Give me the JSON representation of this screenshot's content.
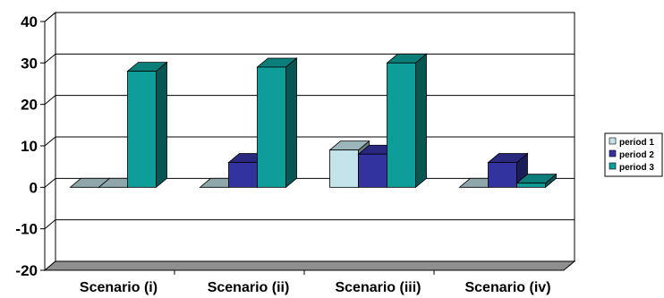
{
  "chart_data": {
    "type": "bar",
    "style": "3d-clustered-column",
    "categories": [
      "Scenario (i)",
      "Scenario (ii)",
      "Scenario (iii)",
      "Scenario (iv)"
    ],
    "series": [
      {
        "name": "period 1",
        "values": [
          0,
          0,
          9,
          0
        ],
        "color": "#c2e4ea"
      },
      {
        "name": "period 2",
        "values": [
          0,
          6,
          8,
          6
        ],
        "color": "#3333a0"
      },
      {
        "name": "period 3",
        "values": [
          28,
          29,
          30,
          1
        ],
        "color": "#0f9d99"
      }
    ],
    "yticks": [
      40,
      30,
      20,
      10,
      0,
      -10,
      -20
    ],
    "ylim": [
      -20,
      40
    ],
    "grid": true,
    "legend": "right",
    "title": "",
    "xlabel": "",
    "ylabel": ""
  }
}
